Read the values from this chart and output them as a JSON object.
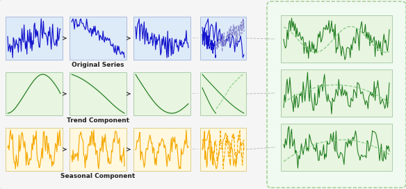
{
  "bg_color": "#f2f2f2",
  "outer_border_color": "#cccccc",
  "title_original": "Original Series",
  "title_trend": "Trend Component",
  "title_seasonal": "Seasonal Component",
  "blue_color": "#1111cc",
  "blue_light_color": "#8888cc",
  "green_dark_color": "#1a7a1a",
  "green_light_color": "#88cc88",
  "orange_color": "#f5a800",
  "row_bg_blue": "#ddeaf8",
  "row_bg_green": "#e8f5e0",
  "row_bg_orange": "#fff8e0",
  "right_panel_bg": "#f0faf0",
  "right_panel_border": "#99cc88",
  "arrow_color": "#444444",
  "dot_color": "#999999",
  "outer_bg": "#f5f5f5"
}
